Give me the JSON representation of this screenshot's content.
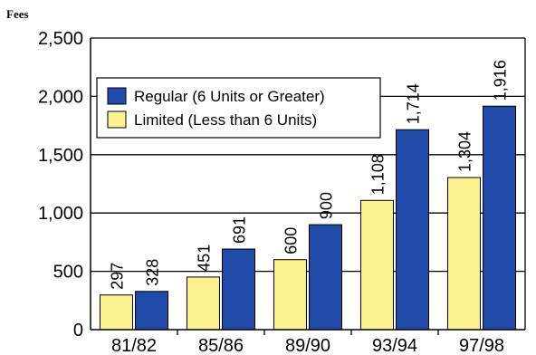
{
  "chart_data": {
    "type": "bar",
    "ylabel": "Fees",
    "categories": [
      "81/82",
      "85/86",
      "89/90",
      "93/94",
      "97/98"
    ],
    "series": [
      {
        "name": "Limited (Less than 6 Units)",
        "values": [
          297,
          451,
          600,
          1108,
          1304
        ],
        "color": "#fbf28f"
      },
      {
        "name": "Regular (6 Units or Greater)",
        "values": [
          328,
          691,
          900,
          1714,
          1916
        ],
        "color": "#1f4aa8"
      }
    ],
    "value_labels": {
      "Limited (Less than 6 Units)": [
        "297",
        "451",
        "600",
        "1,108",
        "1,304"
      ],
      "Regular (6 Units or Greater)": [
        "328",
        "691",
        "900",
        "1,714",
        "1,916"
      ]
    },
    "y_ticks": [
      0,
      500,
      1000,
      1500,
      2000,
      2500
    ],
    "y_tick_labels": [
      "0",
      "500",
      "1,000",
      "1,500",
      "2,000",
      "2,500"
    ],
    "ylim": [
      0,
      2500
    ],
    "grid": true,
    "legend": {
      "placement": "upper-left",
      "order": [
        "Regular (6 Units or Greater)",
        "Limited (Less than 6 Units)"
      ]
    }
  }
}
